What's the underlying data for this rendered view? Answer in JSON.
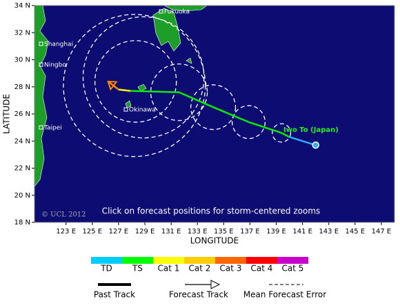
{
  "map": {
    "note": "Click on forecast positions for storm-centered zooms",
    "copyright": "© UCL 2012",
    "x_label": "LONGITUDE",
    "y_label": "LATITUDE",
    "xlim": [
      120.6,
      148
    ],
    "ylim": [
      18,
      34
    ],
    "xticks": [
      {
        "value": 123,
        "label": "123 E"
      },
      {
        "value": 125,
        "label": "125 E"
      },
      {
        "value": 127,
        "label": "127 E"
      },
      {
        "value": 129,
        "label": "129 E"
      },
      {
        "value": 131,
        "label": "131 E"
      },
      {
        "value": 133,
        "label": "133 E"
      },
      {
        "value": 135,
        "label": "135 E"
      },
      {
        "value": 137,
        "label": "137 E"
      },
      {
        "value": 139,
        "label": "139 E"
      },
      {
        "value": 141,
        "label": "141 E"
      },
      {
        "value": 143,
        "label": "143 E"
      },
      {
        "value": 145,
        "label": "145 E"
      },
      {
        "value": 147,
        "label": "147 E"
      }
    ],
    "yticks": [
      {
        "value": 18,
        "label": "18 N"
      },
      {
        "value": 20,
        "label": "20 N"
      },
      {
        "value": 22,
        "label": "22 N"
      },
      {
        "value": 24,
        "label": "24 N"
      },
      {
        "value": 26,
        "label": "26 N"
      },
      {
        "value": 28,
        "label": "28 N"
      },
      {
        "value": 30,
        "label": "30 N"
      },
      {
        "value": 32,
        "label": "32 N"
      },
      {
        "value": 34,
        "label": "34 N"
      }
    ],
    "places": [
      "Fukuoka",
      "Shanghai",
      "Ningbo",
      "Okinawa",
      "Taipei"
    ],
    "storm_label": "Iwo To (Japan)",
    "track": [
      {
        "lon": 142.0,
        "lat": 23.7,
        "color": "#33aaff"
      },
      {
        "lon": 140.0,
        "lat": 24.3,
        "color": "#33aaff"
      },
      {
        "lon": 139.4,
        "lat": 24.6,
        "color": "#00ee00"
      },
      {
        "lon": 136.9,
        "lat": 25.4,
        "color": "#00ee00"
      },
      {
        "lon": 134.2,
        "lat": 26.5,
        "color": "#00ee00"
      },
      {
        "lon": 131.6,
        "lat": 27.6,
        "color": "#00ee00"
      },
      {
        "lon": 127.9,
        "lat": 27.7,
        "color": "#00ee00"
      },
      {
        "lon": 127.0,
        "lat": 27.8,
        "color": "#ffff00"
      },
      {
        "lon": 126.2,
        "lat": 28.4,
        "color": "#ff8800"
      }
    ],
    "error_circles": [
      {
        "lon": 139.4,
        "lat": 24.6,
        "radius": 0.7
      },
      {
        "lon": 136.9,
        "lat": 25.4,
        "radius": 1.25
      },
      {
        "lon": 134.2,
        "lat": 26.5,
        "radius": 1.7
      },
      {
        "lon": 131.6,
        "lat": 27.6,
        "radius": 2.15
      },
      {
        "lon": 128.3,
        "lat": 28.4,
        "radius": 3.1
      },
      {
        "lon": 128.9,
        "lat": 28.7,
        "radius": 4.6
      },
      {
        "lon": 128.2,
        "lat": 28.1,
        "radius": 5.4
      }
    ]
  },
  "legend": {
    "scale": [
      {
        "label": "TD",
        "color": "#00ccff"
      },
      {
        "label": "TS",
        "color": "#00ff00"
      },
      {
        "label": "Cat 1",
        "color": "#ffff00"
      },
      {
        "label": "Cat 2",
        "color": "#ffcc00"
      },
      {
        "label": "Cat 3",
        "color": "#ff6600"
      },
      {
        "label": "Cat 4",
        "color": "#ff0000"
      },
      {
        "label": "Cat 5",
        "color": "#cc00cc"
      }
    ],
    "past_track": "Past Track",
    "forecast_track": "Forecast Track",
    "mean_error": "Mean Forecast Error"
  }
}
